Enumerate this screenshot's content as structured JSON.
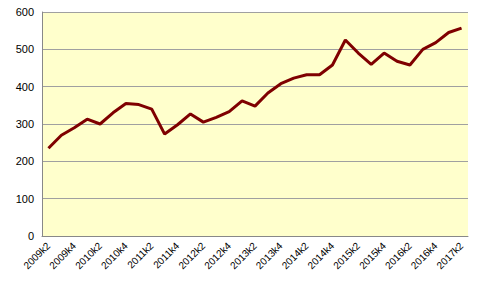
{
  "chart_data": {
    "type": "line",
    "categories": [
      "2009k2",
      null,
      "2009k4",
      null,
      "2010k2",
      null,
      "2010k4",
      null,
      "2011k2",
      null,
      "2011k4",
      null,
      "2012k2",
      null,
      "2012k4",
      null,
      "2013k2",
      null,
      "2013k4",
      null,
      "2014k2",
      null,
      "2014k4",
      null,
      "2015k2",
      null,
      "2015k4",
      null,
      "2016k2",
      null,
      "2016k4",
      null,
      "2017k2"
    ],
    "values": [
      235,
      270,
      290,
      313,
      300,
      330,
      355,
      352,
      340,
      273,
      298,
      327,
      305,
      318,
      333,
      362,
      348,
      383,
      408,
      423,
      432,
      432,
      458,
      525,
      490,
      460,
      490,
      468,
      458,
      500,
      518,
      545,
      557
    ],
    "color": "#7f0000",
    "marker": "none",
    "ylim": [
      0,
      600
    ],
    "yticks": [
      0,
      100,
      200,
      300,
      400,
      500,
      600
    ],
    "grid": true
  }
}
